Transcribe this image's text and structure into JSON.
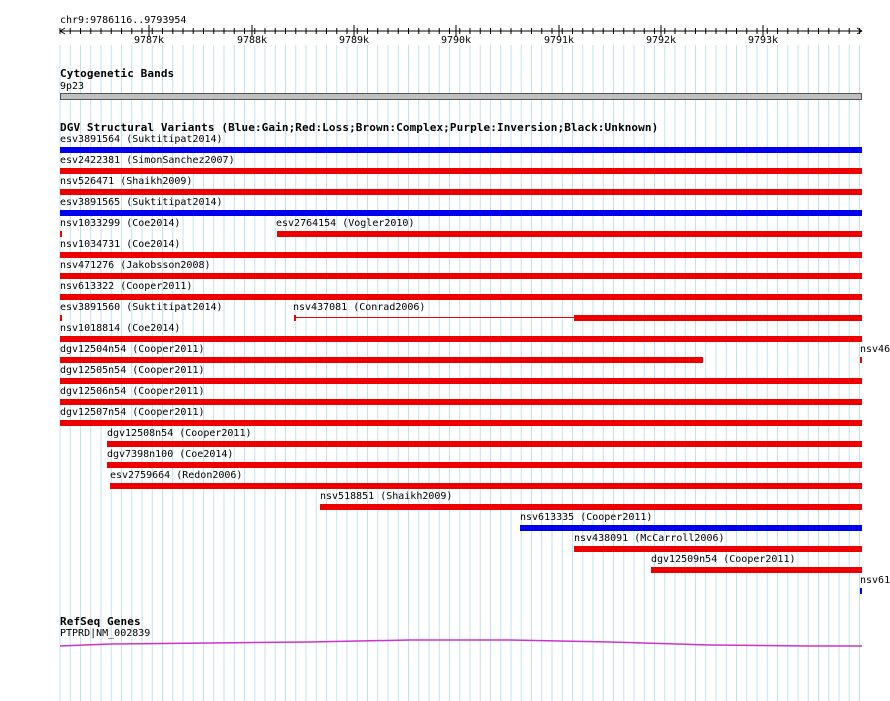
{
  "ruler": {
    "region": "chr9:9786116..9793954",
    "ticks": [
      "9787k",
      "9788k",
      "9789k",
      "9790k",
      "9791k",
      "9792k",
      "9793k"
    ]
  },
  "cytoband": {
    "title": "Cytogenetic Bands",
    "band": "9p23"
  },
  "dgv": {
    "title": "DGV Structural Variants (Blue:Gain;Red:Loss;Brown:Complex;Purple:Inversion;Black:Unknown)",
    "colors": {
      "gain": "#0000ee",
      "loss": "#ee0000"
    },
    "features": [
      {
        "label": "esv3891564 (Suktitipat2014)",
        "type": "gain"
      },
      {
        "label": "esv2422381 (SimonSanchez2007)",
        "type": "loss"
      },
      {
        "label": "nsv526471 (Shaikh2009)",
        "type": "loss"
      },
      {
        "label": "esv3891565 (Suktitipat2014)",
        "type": "gain"
      },
      {
        "label": "nsv1033299 (Coe2014)",
        "type": "loss"
      },
      {
        "label": "esv2764154 (Vogler2010)",
        "type": "loss"
      },
      {
        "label": "nsv1034731 (Coe2014)",
        "type": "loss"
      },
      {
        "label": "nsv471276 (Jakobsson2008)",
        "type": "loss"
      },
      {
        "label": "nsv613322 (Cooper2011)",
        "type": "loss"
      },
      {
        "label": "esv3891560 (Suktitipat2014)",
        "type": "loss"
      },
      {
        "label": "nsv437081 (Conrad2006)",
        "type": "loss"
      },
      {
        "label": "nsv1018814 (Coe2014)",
        "type": "loss"
      },
      {
        "label": "dgv12504n54 (Cooper2011)",
        "type": "loss"
      },
      {
        "label": "nsv46",
        "type": "loss"
      },
      {
        "label": "dgv12505n54 (Cooper2011)",
        "type": "loss"
      },
      {
        "label": "dgv12506n54 (Cooper2011)",
        "type": "loss"
      },
      {
        "label": "dgv12507n54 (Cooper2011)",
        "type": "loss"
      },
      {
        "label": "dgv12508n54 (Cooper2011)",
        "type": "loss"
      },
      {
        "label": "dgv7398n100 (Coe2014)",
        "type": "loss"
      },
      {
        "label": "esv2759664 (Redon2006)",
        "type": "loss"
      },
      {
        "label": "nsv518851 (Shaikh2009)",
        "type": "loss"
      },
      {
        "label": "nsv613335 (Cooper2011)",
        "type": "gain"
      },
      {
        "label": "nsv438091 (McCarroll2006)",
        "type": "loss"
      },
      {
        "label": "dgv12509n54 (Cooper2011)",
        "type": "loss"
      },
      {
        "label": "nsv61",
        "type": "gain"
      }
    ]
  },
  "refseq": {
    "title": "RefSeq Genes",
    "gene": "PTPRD|NM_002839",
    "color": "#cc33cc"
  }
}
